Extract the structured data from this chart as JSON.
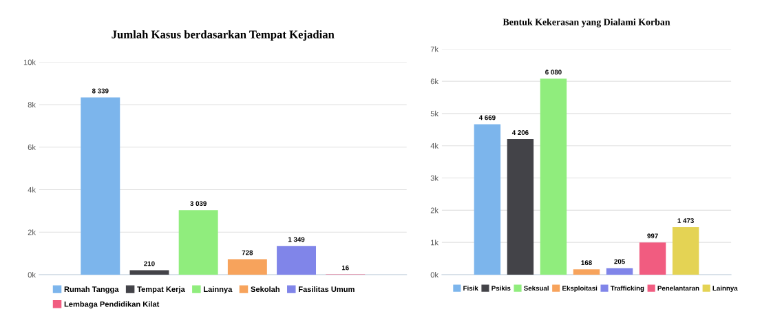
{
  "chart_data": [
    {
      "type": "bar",
      "title": "Jumlah Kasus berdasarkan Tempat Kejadian",
      "categories": [
        null
      ],
      "ylim": [
        0,
        10000
      ],
      "yticks": [
        {
          "value": 0,
          "label": "0k"
        },
        {
          "value": 2000,
          "label": "2k"
        },
        {
          "value": 4000,
          "label": "4k"
        },
        {
          "value": 6000,
          "label": "6k"
        },
        {
          "value": 8000,
          "label": "8k"
        },
        {
          "value": 10000,
          "label": "10k"
        }
      ],
      "grid": "y",
      "legend": "bottom",
      "data_labels": true,
      "tick_labels": "y",
      "series": [
        {
          "name": "Rumah Tangga",
          "color": "#7cb5ec",
          "values": [
            8339
          ]
        },
        {
          "name": "Tempat Kerja",
          "color": "#434348",
          "values": [
            210
          ]
        },
        {
          "name": "Lainnya",
          "color": "#90ed7d",
          "values": [
            3039
          ]
        },
        {
          "name": "Sekolah",
          "color": "#f7a35c",
          "values": [
            728
          ]
        },
        {
          "name": "Fasilitas Umum",
          "color": "#8085e9",
          "values": [
            1349
          ]
        },
        {
          "name": "Lembaga Pendidikan Kilat",
          "color": "#f15c80",
          "values": [
            16
          ]
        }
      ]
    },
    {
      "type": "bar",
      "title": "Bentuk Kekerasan yang Dialami Korban",
      "categories": [
        null
      ],
      "ylim": [
        0,
        7000
      ],
      "yticks": [
        {
          "value": 0,
          "label": "0k"
        },
        {
          "value": 1000,
          "label": "1k"
        },
        {
          "value": 2000,
          "label": "2k"
        },
        {
          "value": 3000,
          "label": "3k"
        },
        {
          "value": 4000,
          "label": "4k"
        },
        {
          "value": 5000,
          "label": "5k"
        },
        {
          "value": 6000,
          "label": "6k"
        },
        {
          "value": 7000,
          "label": "7k"
        }
      ],
      "grid": "y",
      "legend": "bottom",
      "data_labels": true,
      "tick_labels": "y",
      "series": [
        {
          "name": "Fisik",
          "color": "#7cb5ec",
          "values": [
            4669
          ]
        },
        {
          "name": "Psikis",
          "color": "#434348",
          "values": [
            4206
          ]
        },
        {
          "name": "Seksual",
          "color": "#90ed7d",
          "values": [
            6080
          ]
        },
        {
          "name": "Eksploitasi",
          "color": "#f7a35c",
          "values": [
            168
          ]
        },
        {
          "name": "Trafficking",
          "color": "#8085e9",
          "values": [
            205
          ]
        },
        {
          "name": "Penelantaran",
          "color": "#f15c80",
          "values": [
            997
          ]
        },
        {
          "name": "Lainnya",
          "color": "#e4d354",
          "values": [
            1473
          ]
        }
      ]
    }
  ]
}
